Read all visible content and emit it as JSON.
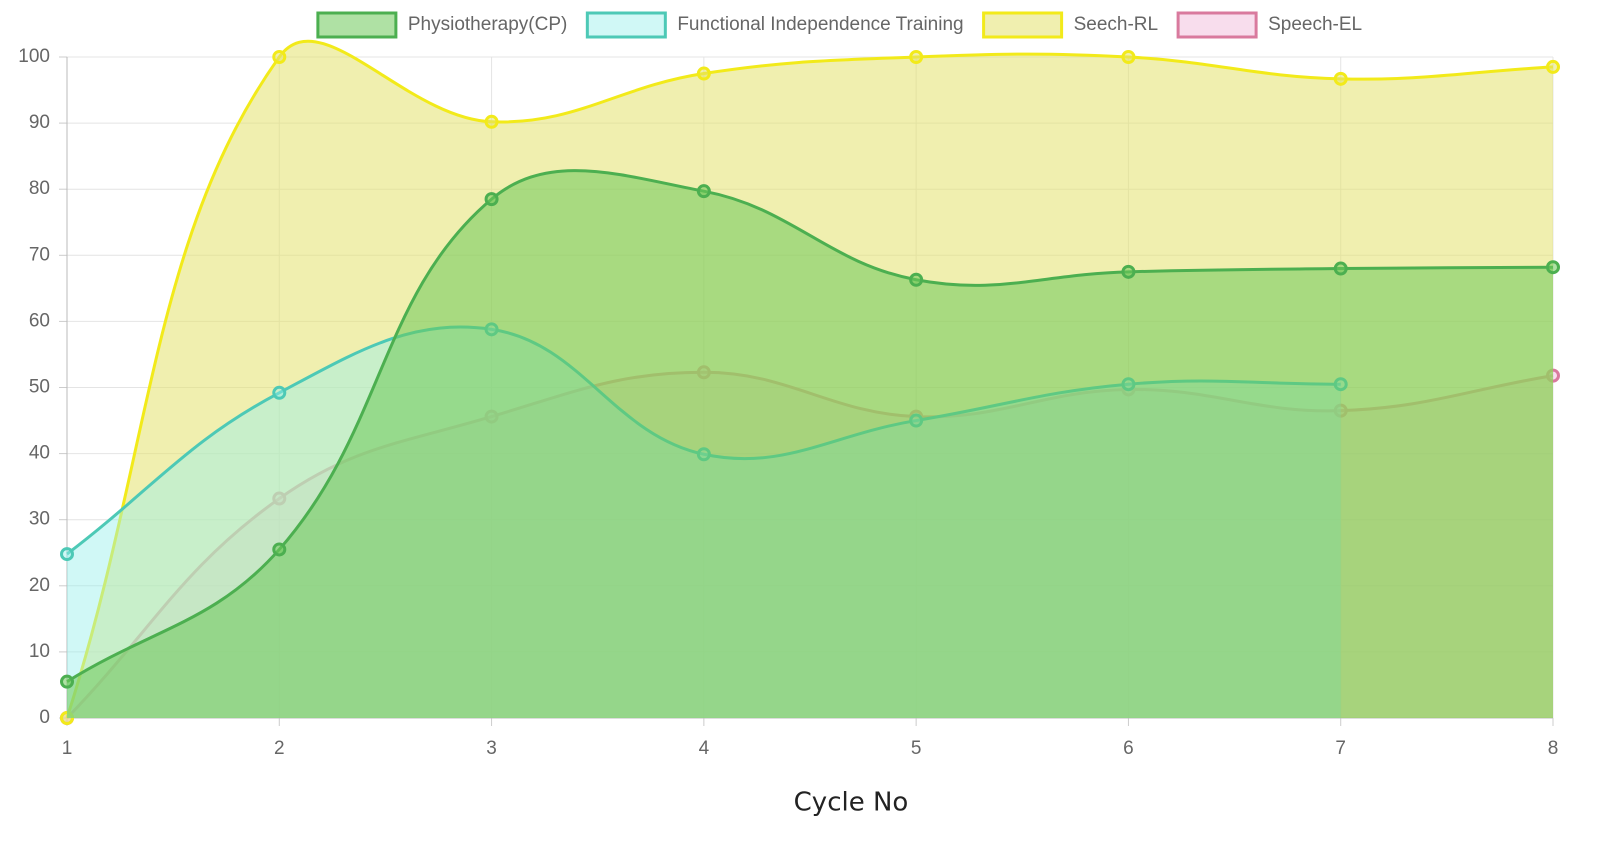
{
  "chart_data": {
    "type": "line",
    "x_label": "Cycle No",
    "x": [
      1,
      2,
      3,
      4,
      5,
      6,
      7,
      8
    ],
    "xlim": [
      1,
      8
    ],
    "xticks": [
      1,
      2,
      3,
      4,
      5,
      6,
      7,
      8
    ],
    "ylim": [
      0,
      100
    ],
    "yticks": [
      0,
      10,
      20,
      30,
      40,
      50,
      60,
      70,
      80,
      90,
      100
    ],
    "grid": true,
    "legend": "top",
    "fill": true,
    "series": [
      {
        "name": "Physiotherapy(CP)",
        "color": "#4caf50",
        "fill_color": "rgba(110,200,90,0.55)",
        "values": [
          5.5,
          25.5,
          78.5,
          79.7,
          66.3,
          67.5,
          68,
          68.2
        ]
      },
      {
        "name": "Functional Independence Training",
        "color": "#4dc9b6",
        "fill_color": "rgba(150,240,235,0.45)",
        "values": [
          24.8,
          49.2,
          58.8,
          39.9,
          45,
          50.5,
          50.5,
          null
        ]
      },
      {
        "name": "Seech-RL",
        "color": "#f2ea1a",
        "fill_color": "rgba(228,225,110,0.55)",
        "values": [
          0,
          100,
          90.2,
          97.5,
          100,
          100,
          96.7,
          98.5
        ]
      },
      {
        "name": "Speech-EL",
        "color": "#d97a9e",
        "fill_color": "rgba(240,180,215,0.45)",
        "values": [
          0,
          33.2,
          45.6,
          52.3,
          45.6,
          49.7,
          46.5,
          51.8
        ]
      }
    ]
  }
}
